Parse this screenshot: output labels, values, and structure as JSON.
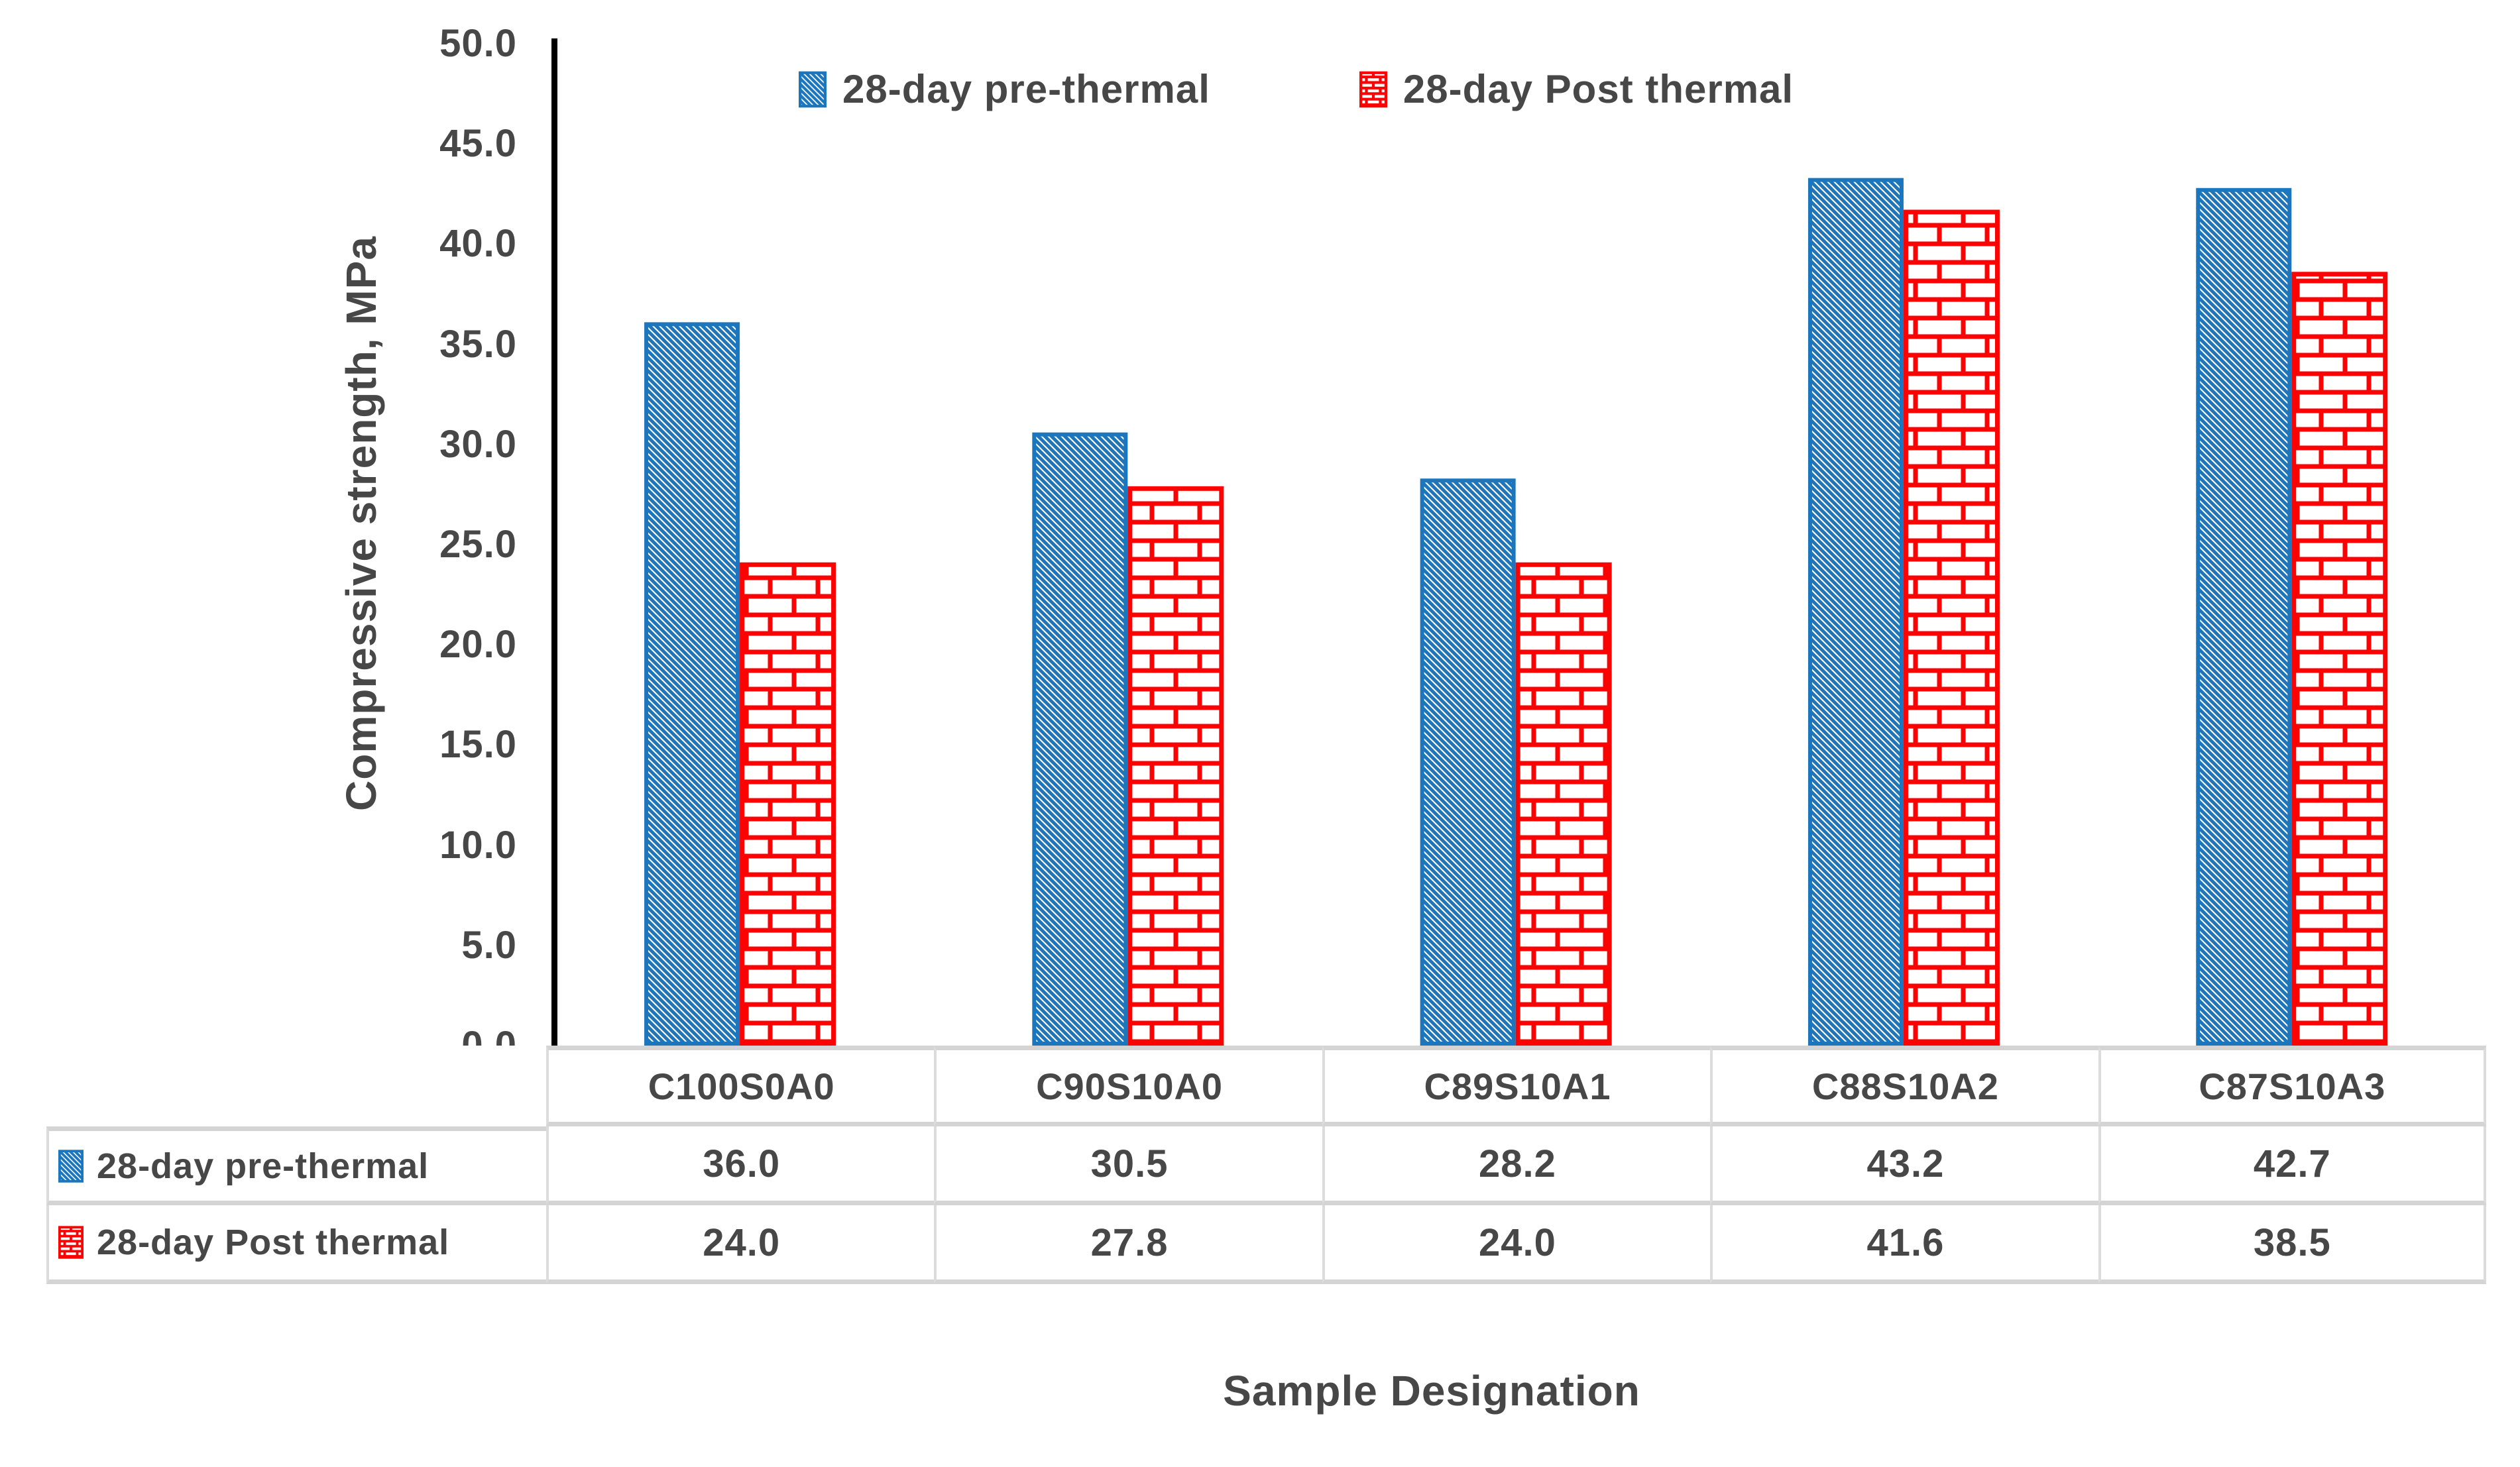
{
  "chart_data": {
    "type": "bar",
    "title": "",
    "xlabel": "Sample Designation",
    "ylabel": "Compressive strength, MPa",
    "categories": [
      "C100S0A0",
      "C90S10A0",
      "C89S10A1",
      "C88S10A2",
      "C87S10A3"
    ],
    "series": [
      {
        "name": "28-day pre-thermal",
        "pattern": "diagonal-hatch",
        "color": "#1B76BE",
        "values": [
          36.0,
          30.5,
          28.2,
          43.2,
          42.7
        ]
      },
      {
        "name": "28-day Post thermal",
        "pattern": "brick",
        "color": "#FB0303",
        "values": [
          24.0,
          27.8,
          24.0,
          41.6,
          38.5
        ]
      }
    ],
    "ylim": [
      0,
      50
    ],
    "ytick_step": 5,
    "value_decimals": 1,
    "grid": false,
    "legend_position": "top-center",
    "data_table_shown": true
  },
  "style": {
    "text_color": "#474747",
    "axis_line_color": "#000000",
    "table_border_h": "#d4d4d4",
    "table_border_v": "#dcdcdc",
    "plot_background": "#ffffff"
  }
}
